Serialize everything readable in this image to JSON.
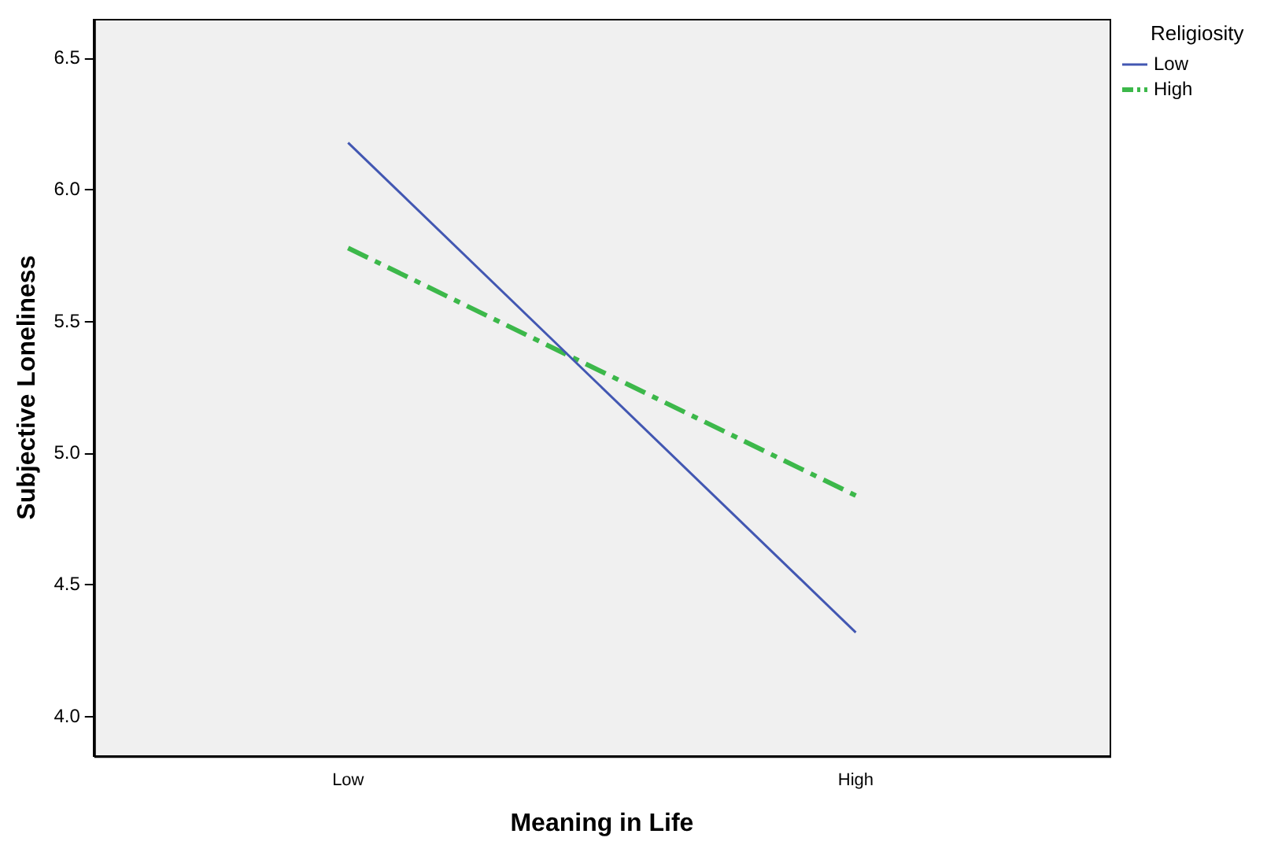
{
  "chart_data": {
    "type": "line",
    "xlabel": "Meaning in Life",
    "ylabel": "Subjective Loneliness",
    "legend_title": "Religiosity",
    "legend": "top right",
    "grid": false,
    "marker": "none",
    "categories": [
      "Low",
      "High"
    ],
    "ylim": [
      3.85,
      6.65
    ],
    "yticks": [
      {
        "value": 4.0,
        "label": "4.0"
      },
      {
        "value": 4.5,
        "label": "4.5"
      },
      {
        "value": 5.0,
        "label": "5.0"
      },
      {
        "value": 5.5,
        "label": "5.5"
      },
      {
        "value": 6.0,
        "label": "6.0"
      },
      {
        "value": 6.5,
        "label": "6.5"
      }
    ],
    "series": [
      {
        "name": "Low",
        "color": "#4257b2",
        "values": [
          6.18,
          4.32
        ],
        "line_style": "solid"
      },
      {
        "name": "High",
        "color": "#3cb84a",
        "values": [
          5.78,
          4.84
        ],
        "line_style": "dashed"
      }
    ]
  }
}
